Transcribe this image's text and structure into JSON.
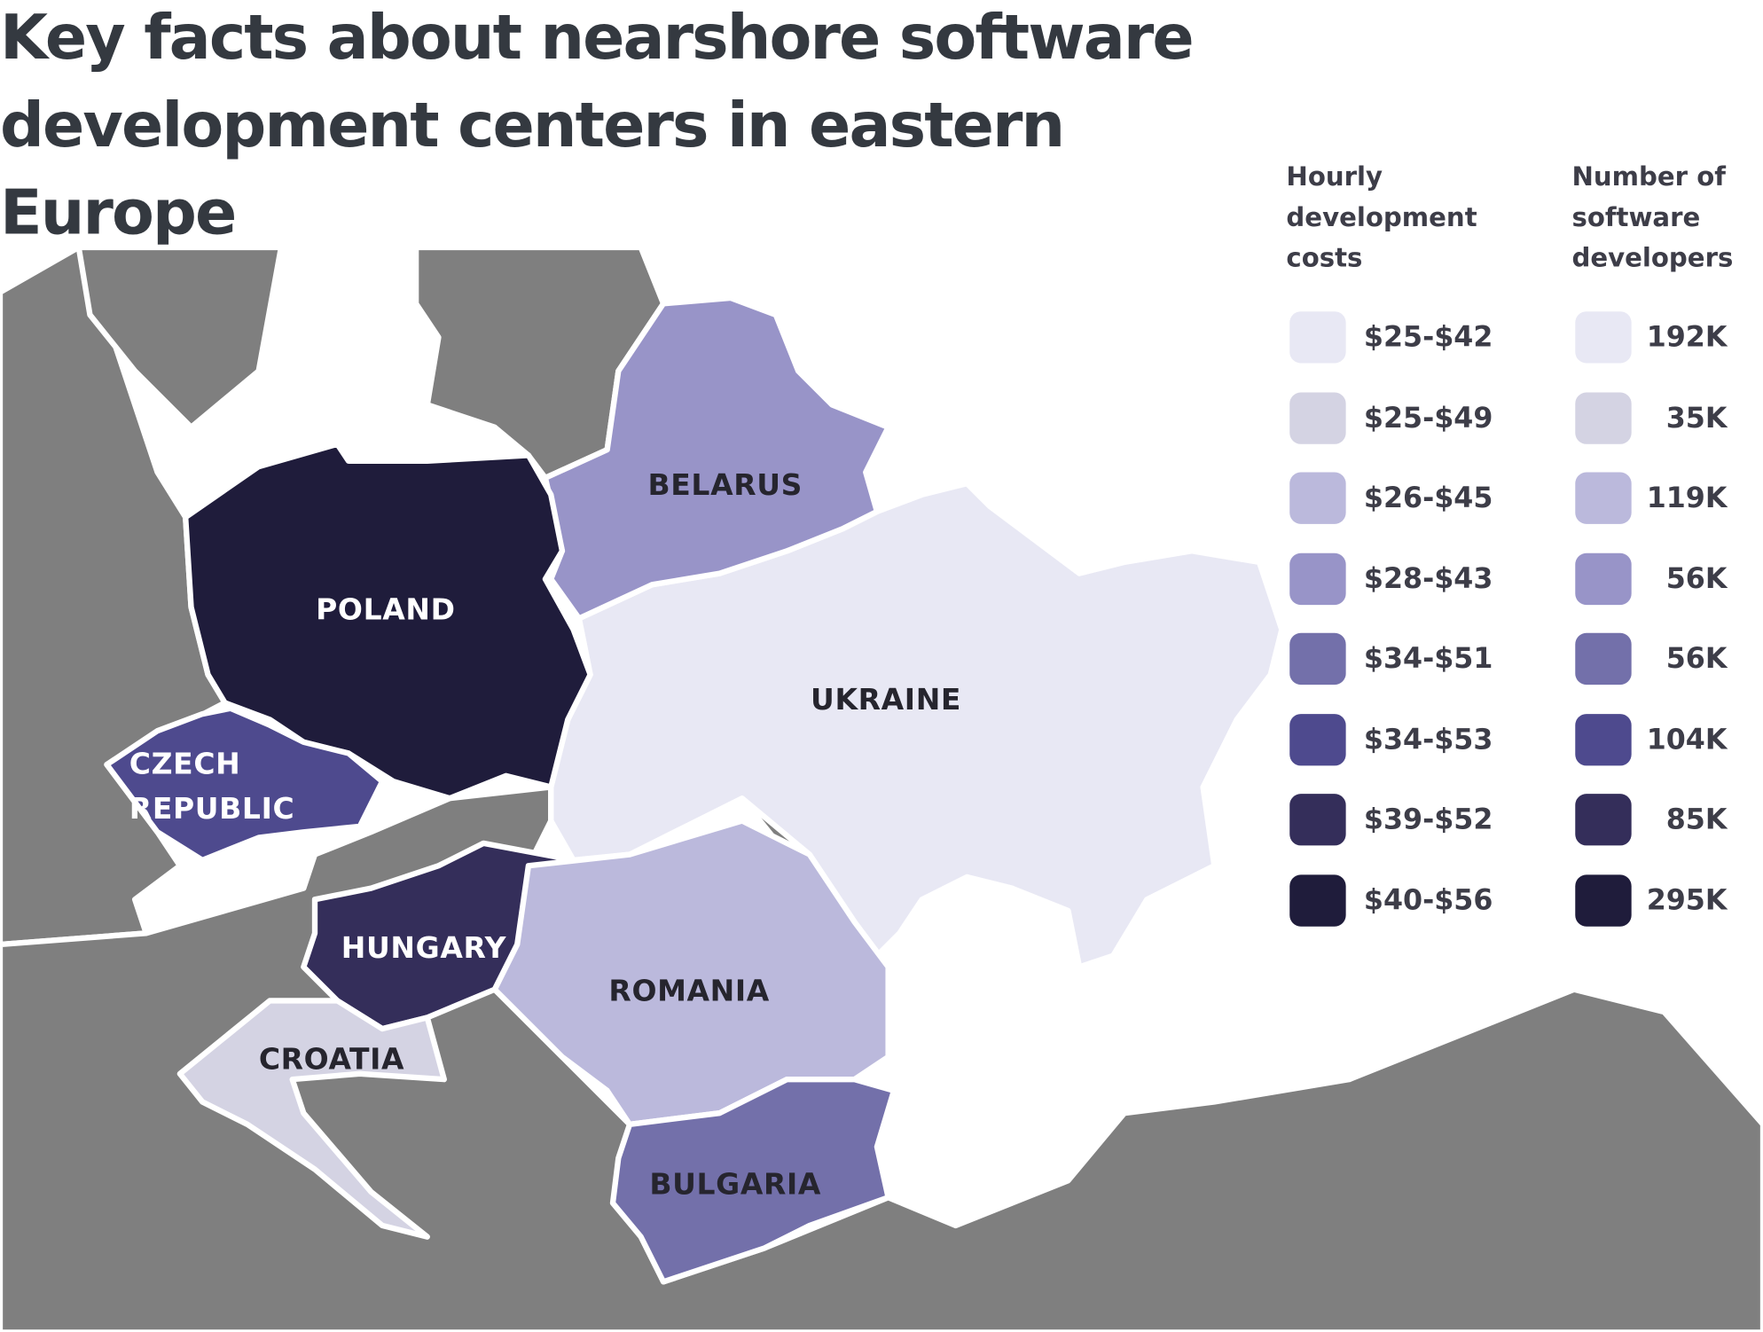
{
  "title": "Key facts about nearshore software development centers in eastern Europe",
  "legend": {
    "colors": [
      "#e8e8f4",
      "#d4d3e3",
      "#bbb9dc",
      "#9894c8",
      "#7370aa",
      "#4e4a8e",
      "#342e5a",
      "#1f1c3b"
    ],
    "columns": [
      {
        "heading": "Hourly development costs",
        "items": [
          "$25-$42",
          "$25-$49",
          "$26-$45",
          "$28-$43",
          "$34-$51",
          "$34-$53",
          "$39-$52",
          "$40-$56"
        ]
      },
      {
        "heading": "Number of software developers",
        "items": [
          "192K",
          "35K",
          "119K",
          "56K",
          "56K",
          "104K",
          "85K",
          "295K"
        ]
      }
    ]
  },
  "countries": [
    {
      "label": "POLAND",
      "color": "#1f1c3b"
    },
    {
      "label": "CZECH REPUBLIC",
      "color": "#4e4a8e"
    },
    {
      "label": "HUNGARY",
      "color": "#342e5a"
    },
    {
      "label": "CROATIA",
      "color": "#d4d3e3"
    },
    {
      "label": "ROMANIA",
      "color": "#bbb9dc"
    },
    {
      "label": "BULGARIA",
      "color": "#7370aa"
    },
    {
      "label": "BELARUS",
      "color": "#9894c8"
    },
    {
      "label": "UKRAINE",
      "color": "#e8e8f4"
    }
  ]
}
